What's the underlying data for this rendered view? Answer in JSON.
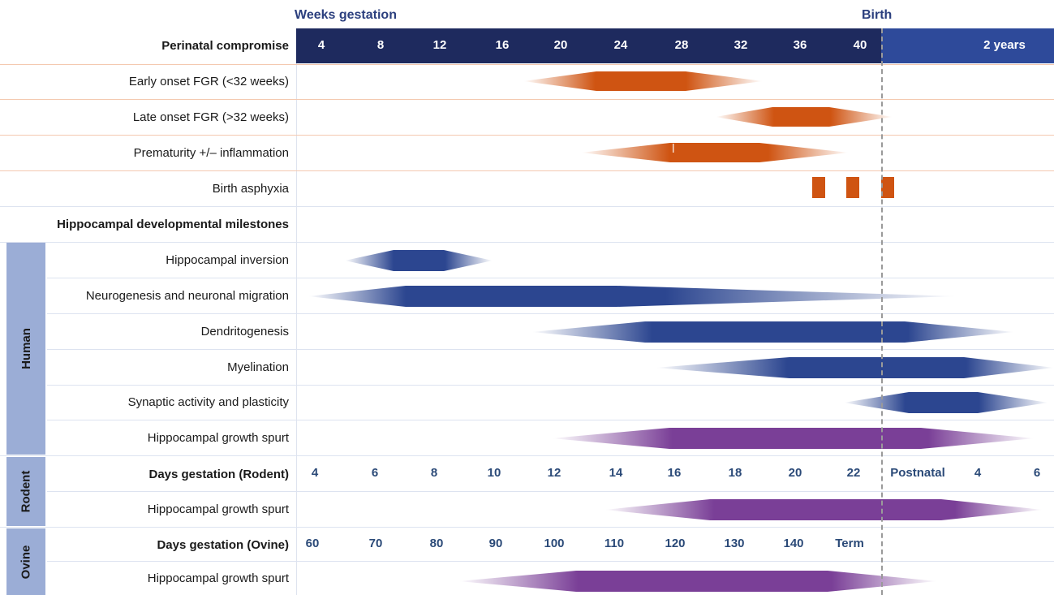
{
  "header": {
    "weeks_label": "Weeks gestation",
    "birth_label": "Birth"
  },
  "timeline": {
    "title": "Perinatal compromise",
    "weeks": [
      "4",
      "8",
      "12",
      "16",
      "20",
      "24",
      "28",
      "32",
      "36",
      "40"
    ],
    "postnatal": "2 years"
  },
  "compromise_rows": [
    {
      "label": "Early onset FGR (<32 weeks)",
      "color": "#cf5412"
    },
    {
      "label": "Late onset FGR (>32 weeks)",
      "color": "#cf5412"
    },
    {
      "label": "Prematurity +/– inflammation",
      "color": "#cf5412"
    },
    {
      "label": "Birth asphyxia",
      "color": "#cf5412"
    }
  ],
  "milestones_title": "Hippocampal developmental milestones",
  "side_labels": {
    "human": "Human",
    "rodent": "Rodent",
    "ovine": "Ovine"
  },
  "human_rows": [
    {
      "label": "Hippocampal inversion",
      "color": "#2c4690"
    },
    {
      "label": "Neurogenesis and neuronal migration",
      "color": "#2c4690"
    },
    {
      "label": "Dendritogenesis",
      "color": "#2c4690"
    },
    {
      "label": "Myelination",
      "color": "#2c4690"
    },
    {
      "label": "Synaptic activity and plasticity",
      "color": "#2c4690"
    },
    {
      "label": "Hippocampal growth spurt",
      "color": "#7a3f97"
    }
  ],
  "rodent": {
    "title": "Days gestation (Rodent)",
    "ticks": [
      "4",
      "6",
      "8",
      "10",
      "12",
      "14",
      "16",
      "18",
      "20",
      "22",
      "Postnatal",
      "4",
      "6"
    ],
    "row_label": "Hippocampal growth spurt"
  },
  "ovine": {
    "title": "Days gestation (Ovine)",
    "ticks": [
      "60",
      "70",
      "80",
      "90",
      "100",
      "110",
      "120",
      "130",
      "140",
      "Term"
    ],
    "row_label": "Hippocampal growth spurt"
  },
  "colors": {
    "prenatal_band": "#1e2a5e",
    "postnatal_band": "#2e4a9a",
    "compromise": "#cf5412",
    "human_milestone": "#2c4690",
    "growth_spurt": "#7a3f97",
    "side_panel": "#9badd6",
    "tick_text": "#2b4a78"
  }
}
